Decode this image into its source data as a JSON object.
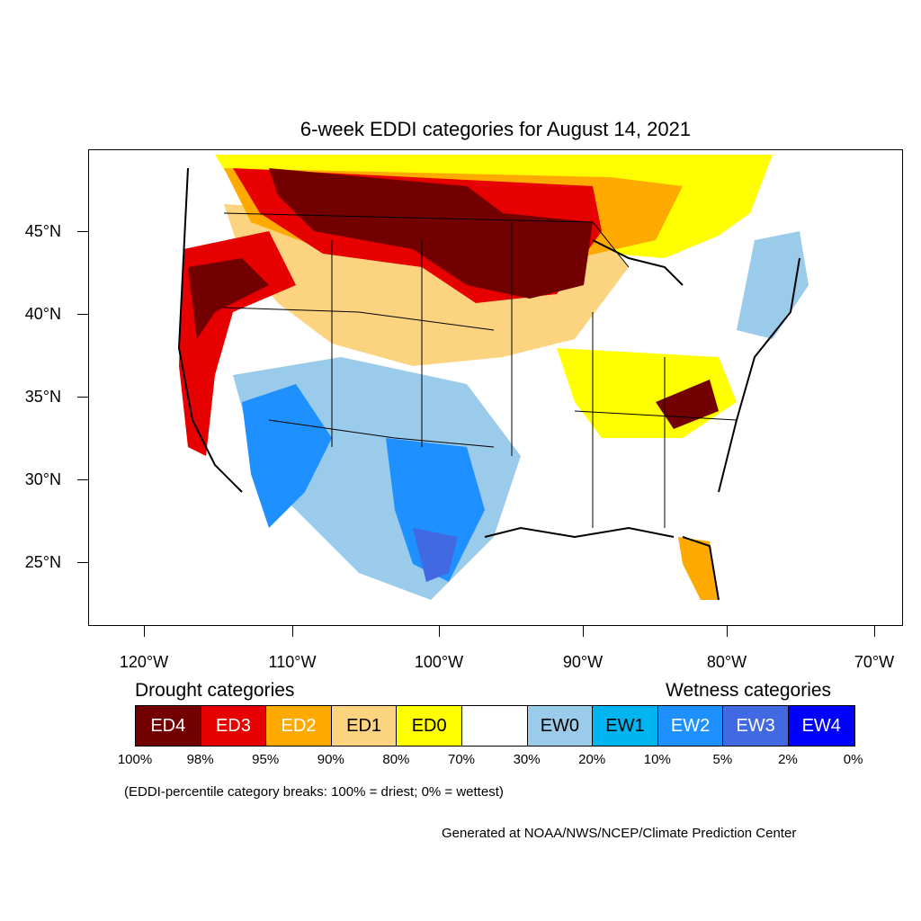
{
  "title": "6-week EDDI categories for August 14, 2021",
  "lat_labels": [
    "45°N",
    "40°N",
    "35°N",
    "30°N",
    "25°N"
  ],
  "lon_labels": [
    "120°W",
    "110°W",
    "100°W",
    "90°W",
    "80°W",
    "70°W"
  ],
  "legend": {
    "drought_heading": "Drought categories",
    "wetness_heading": "Wetness categories",
    "categories": [
      {
        "label": "ED4",
        "color": "#730000",
        "text_color": "#ffffff"
      },
      {
        "label": "ED3",
        "color": "#e60000",
        "text_color": "#ffffff"
      },
      {
        "label": "ED2",
        "color": "#ffaa00",
        "text_color": "#ffffff"
      },
      {
        "label": "ED1",
        "color": "#fcd37f",
        "text_color": "#000000"
      },
      {
        "label": "ED0",
        "color": "#ffff00",
        "text_color": "#000000"
      },
      {
        "label": "",
        "color": "#ffffff",
        "text_color": "#000000"
      },
      {
        "label": "EW0",
        "color": "#9bcbeb",
        "text_color": "#000000"
      },
      {
        "label": "EW1",
        "color": "#00b4f0",
        "text_color": "#000000"
      },
      {
        "label": "EW2",
        "color": "#1e90ff",
        "text_color": "#ffffff"
      },
      {
        "label": "EW3",
        "color": "#4169e1",
        "text_color": "#ffffff"
      },
      {
        "label": "EW4",
        "color": "#0000ff",
        "text_color": "#ffffff"
      }
    ],
    "breaks": [
      "100%",
      "98%",
      "95%",
      "90%",
      "80%",
      "70%",
      "30%",
      "20%",
      "10%",
      "5%",
      "2%",
      "0%"
    ]
  },
  "note": "(EDDI-percentile category breaks: 100% = driest; 0% = wettest)",
  "credit": "Generated at NOAA/NWS/NCEP/Climate Prediction Center"
}
